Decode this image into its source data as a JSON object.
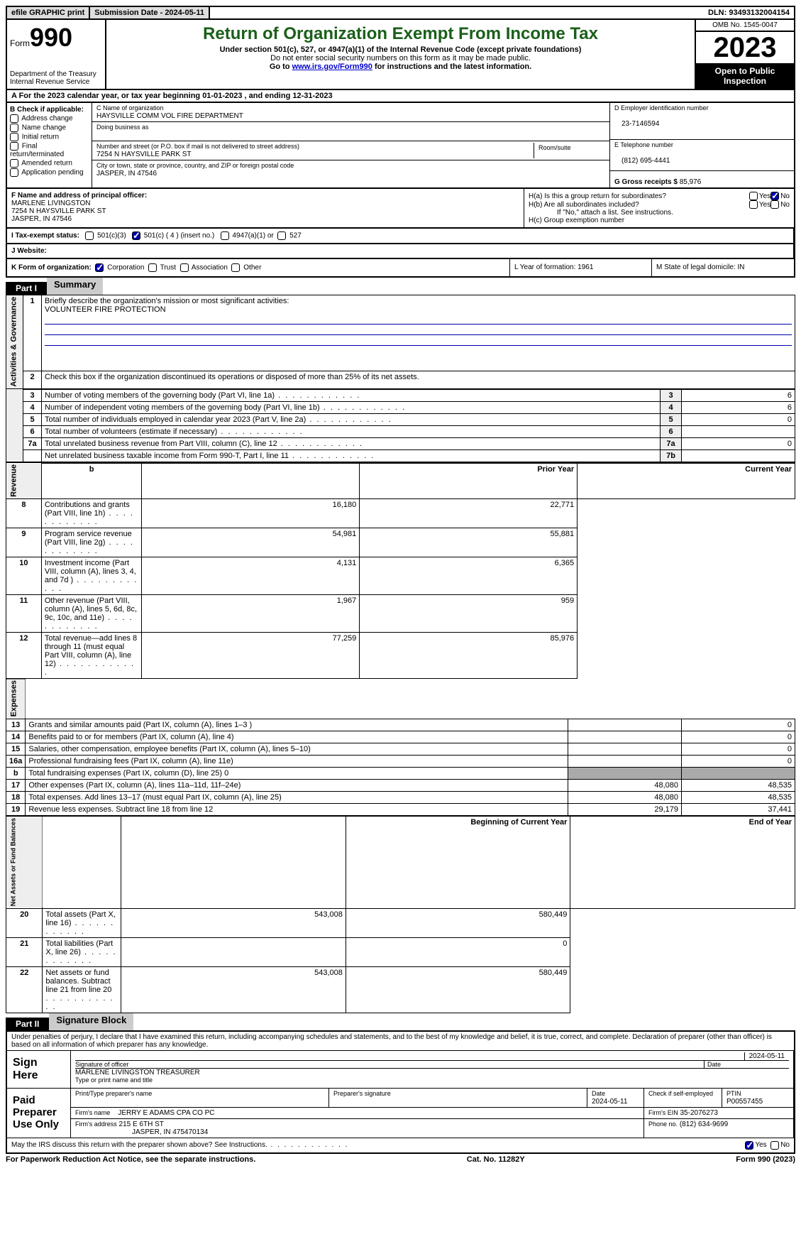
{
  "topbar": {
    "efile": "efile GRAPHIC print",
    "submission": "Submission Date - 2024-05-11",
    "dln": "DLN: 93493132004154"
  },
  "header": {
    "form_label": "Form",
    "form_no": "990",
    "dept": "Department of the Treasury",
    "irs": "Internal Revenue Service",
    "title": "Return of Organization Exempt From Income Tax",
    "subtitle": "Under section 501(c), 527, or 4947(a)(1) of the Internal Revenue Code (except private foundations)",
    "note1": "Do not enter social security numbers on this form as it may be made public.",
    "note2_pre": "Go to ",
    "note2_link": "www.irs.gov/Form990",
    "note2_post": " for instructions and the latest information.",
    "omb": "OMB No. 1545-0047",
    "year": "2023",
    "inspection": "Open to Public Inspection"
  },
  "rowA": "A For the 2023 calendar year, or tax year beginning 01-01-2023   , and ending 12-31-2023",
  "boxB": {
    "label": "B Check if applicable:",
    "items": [
      "Address change",
      "Name change",
      "Initial return",
      "Final return/terminated",
      "Amended return",
      "Application pending"
    ]
  },
  "boxC": {
    "name_label": "C Name of organization",
    "name": "HAYSVILLE COMM VOL FIRE DEPARTMENT",
    "dba_label": "Doing business as",
    "dba": "",
    "addr_label": "Number and street (or P.O. box if mail is not delivered to street address)",
    "addr": "7254 N HAYSVILLE PARK ST",
    "room_label": "Room/suite",
    "city_label": "City or town, state or province, country, and ZIP or foreign postal code",
    "city": "JASPER, IN  47546"
  },
  "boxD": {
    "label": "D Employer identification number",
    "value": "23-7146594"
  },
  "boxE": {
    "label": "E Telephone number",
    "value": "(812) 695-4441"
  },
  "boxG": {
    "label": "G Gross receipts $",
    "value": "85,976"
  },
  "boxF": {
    "label": "F  Name and address of principal officer:",
    "name": "MARLENE LIVINGSTON",
    "addr1": "7254 N HAYSVILLE PARK ST",
    "addr2": "JASPER, IN  47546"
  },
  "boxH": {
    "a": "H(a)  Is this a group return for subordinates?",
    "b": "H(b)  Are all subordinates included?",
    "b_note": "If \"No,\" attach a list. See instructions.",
    "c": "H(c)  Group exemption number",
    "yes": "Yes",
    "no": "No"
  },
  "boxI": {
    "label": "I   Tax-exempt status:",
    "opt1": "501(c)(3)",
    "opt2": "501(c) ( 4 ) (insert no.)",
    "opt3": "4947(a)(1) or",
    "opt4": "527"
  },
  "boxJ": {
    "label": "J   Website:",
    "value": ""
  },
  "boxK": {
    "label": "K Form of organization:",
    "opts": [
      "Corporation",
      "Trust",
      "Association",
      "Other"
    ]
  },
  "boxL": {
    "label": "L Year of formation: 1961"
  },
  "boxM": {
    "label": "M State of legal domicile: IN"
  },
  "part1": {
    "hdr": "Part I",
    "title": "Summary"
  },
  "summary": {
    "line1_label": "Briefly describe the organization's mission or most significant activities:",
    "line1_value": "VOLUNTEER FIRE PROTECTION",
    "line2": "Check this box      if the organization discontinued its operations or disposed of more than 25% of its net assets.",
    "rows_gov": [
      {
        "n": "3",
        "t": "Number of voting members of the governing body (Part VI, line 1a)",
        "b": "3",
        "v": "6"
      },
      {
        "n": "4",
        "t": "Number of independent voting members of the governing body (Part VI, line 1b)",
        "b": "4",
        "v": "6"
      },
      {
        "n": "5",
        "t": "Total number of individuals employed in calendar year 2023 (Part V, line 2a)",
        "b": "5",
        "v": "0"
      },
      {
        "n": "6",
        "t": "Total number of volunteers (estimate if necessary)",
        "b": "6",
        "v": ""
      },
      {
        "n": "7a",
        "t": "Total unrelated business revenue from Part VIII, column (C), line 12",
        "b": "7a",
        "v": "0"
      },
      {
        "n": "",
        "t": "Net unrelated business taxable income from Form 990-T, Part I, line 11",
        "b": "7b",
        "v": ""
      }
    ],
    "hdr_prior": "Prior Year",
    "hdr_current": "Current Year",
    "rows_rev": [
      {
        "n": "8",
        "t": "Contributions and grants (Part VIII, line 1h)",
        "p": "16,180",
        "c": "22,771"
      },
      {
        "n": "9",
        "t": "Program service revenue (Part VIII, line 2g)",
        "p": "54,981",
        "c": "55,881"
      },
      {
        "n": "10",
        "t": "Investment income (Part VIII, column (A), lines 3, 4, and 7d )",
        "p": "4,131",
        "c": "6,365"
      },
      {
        "n": "11",
        "t": "Other revenue (Part VIII, column (A), lines 5, 6d, 8c, 9c, 10c, and 11e)",
        "p": "1,967",
        "c": "959"
      },
      {
        "n": "12",
        "t": "Total revenue—add lines 8 through 11 (must equal Part VIII, column (A), line 12)",
        "p": "77,259",
        "c": "85,976"
      }
    ],
    "rows_exp": [
      {
        "n": "13",
        "t": "Grants and similar amounts paid (Part IX, column (A), lines 1–3 )",
        "p": "",
        "c": "0"
      },
      {
        "n": "14",
        "t": "Benefits paid to or for members (Part IX, column (A), line 4)",
        "p": "",
        "c": "0"
      },
      {
        "n": "15",
        "t": "Salaries, other compensation, employee benefits (Part IX, column (A), lines 5–10)",
        "p": "",
        "c": "0"
      },
      {
        "n": "16a",
        "t": "Professional fundraising fees (Part IX, column (A), line 11e)",
        "p": "",
        "c": "0"
      },
      {
        "n": "b",
        "t": "Total fundraising expenses (Part IX, column (D), line 25) 0",
        "p": "SHADE",
        "c": "SHADE"
      },
      {
        "n": "17",
        "t": "Other expenses (Part IX, column (A), lines 11a–11d, 11f–24e)",
        "p": "48,080",
        "c": "48,535"
      },
      {
        "n": "18",
        "t": "Total expenses. Add lines 13–17 (must equal Part IX, column (A), line 25)",
        "p": "48,080",
        "c": "48,535"
      },
      {
        "n": "19",
        "t": "Revenue less expenses. Subtract line 18 from line 12",
        "p": "29,179",
        "c": "37,441"
      }
    ],
    "hdr_beg": "Beginning of Current Year",
    "hdr_end": "End of Year",
    "rows_net": [
      {
        "n": "20",
        "t": "Total assets (Part X, line 16)",
        "p": "543,008",
        "c": "580,449"
      },
      {
        "n": "21",
        "t": "Total liabilities (Part X, line 26)",
        "p": "",
        "c": "0"
      },
      {
        "n": "22",
        "t": "Net assets or fund balances. Subtract line 21 from line 20",
        "p": "543,008",
        "c": "580,449"
      }
    ],
    "vlabels": {
      "gov": "Activities & Governance",
      "rev": "Revenue",
      "exp": "Expenses",
      "net": "Net Assets or Fund Balances"
    }
  },
  "part2": {
    "hdr": "Part II",
    "title": "Signature Block"
  },
  "sig": {
    "perjury": "Under penalties of perjury, I declare that I have examined this return, including accompanying schedules and statements, and to the best of my knowledge and belief, it is true, correct, and complete. Declaration of preparer (other than officer) is based on all information of which preparer has any knowledge.",
    "sign_here": "Sign Here",
    "sig_officer": "Signature of officer",
    "officer_name": "MARLENE LIVINGSTON  TREASURER",
    "type_name": "Type or print name and title",
    "date": "Date",
    "date_val": "2024-05-11",
    "paid": "Paid Preparer Use Only",
    "prep_name_label": "Print/Type preparer's name",
    "prep_sig": "Preparer's signature",
    "prep_date": "Date",
    "prep_date_val": "2024-05-11",
    "check_self": "Check      if self-employed",
    "ptin_label": "PTIN",
    "ptin": "P00557455",
    "firm_name_label": "Firm's name",
    "firm_name": "JERRY E ADAMS CPA CO PC",
    "firm_ein_label": "Firm's EIN",
    "firm_ein": "35-2076273",
    "firm_addr_label": "Firm's address",
    "firm_addr1": "215 E 6TH ST",
    "firm_addr2": "JASPER, IN  475470134",
    "phone_label": "Phone no.",
    "phone": "(812) 634-9699",
    "discuss": "May the IRS discuss this return with the preparer shown above? See Instructions."
  },
  "footer": {
    "left": "For Paperwork Reduction Act Notice, see the separate instructions.",
    "mid": "Cat. No. 11282Y",
    "right": "Form 990 (2023)"
  }
}
